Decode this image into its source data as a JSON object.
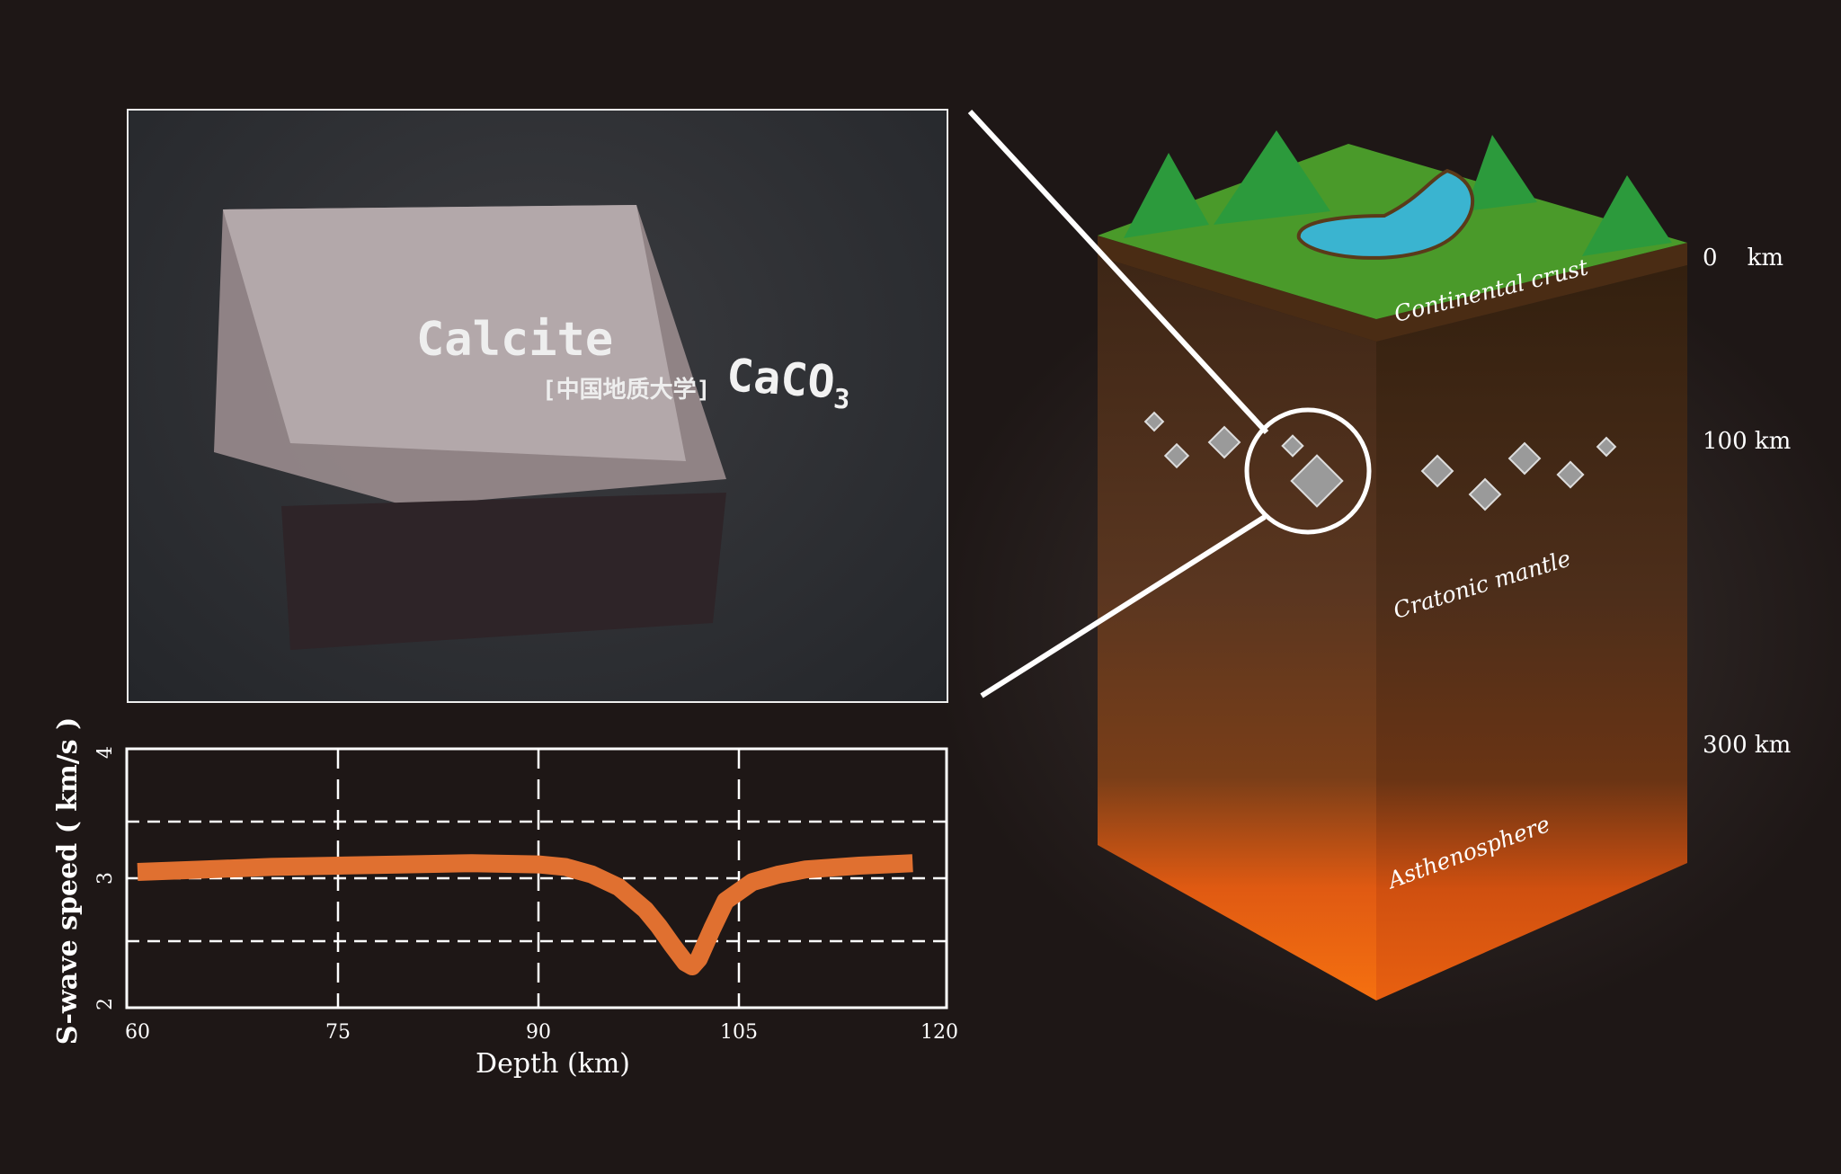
{
  "photo": {
    "mineral_name": "Calcite",
    "formula": "CaCO",
    "formula_subscript": "3",
    "institution": "[中国地质大学]"
  },
  "block": {
    "depth_labels": [
      "0    km",
      "100 km",
      "300 km"
    ],
    "layers": [
      "Continental crust",
      "Cratonic mantle",
      "Asthenosphere"
    ],
    "colors": {
      "grass": "#4a9a2a",
      "crust": "#4a2c14",
      "mantle": "#5a3a22",
      "asthenosphere": "#f26a10",
      "lake": "#3ab4d0"
    }
  },
  "chart_data": {
    "type": "line",
    "xlabel": "Depth (km)",
    "ylabel": "S-wave speed ( km/s )",
    "xlim": [
      60,
      120
    ],
    "ylim": [
      2,
      4
    ],
    "xticks": [
      60,
      75,
      90,
      105,
      120
    ],
    "yticks": [
      2,
      3,
      4
    ],
    "grid": true,
    "line_color": "#e07030",
    "x": [
      60,
      65,
      70,
      75,
      80,
      85,
      90,
      92,
      94,
      96,
      98,
      99,
      100,
      101,
      101.5,
      102,
      103,
      104,
      106,
      108,
      110,
      114,
      118
    ],
    "y": [
      3.05,
      3.07,
      3.09,
      3.1,
      3.11,
      3.12,
      3.11,
      3.09,
      3.03,
      2.93,
      2.75,
      2.62,
      2.47,
      2.33,
      2.3,
      2.36,
      2.6,
      2.82,
      2.97,
      3.03,
      3.07,
      3.1,
      3.12
    ]
  }
}
